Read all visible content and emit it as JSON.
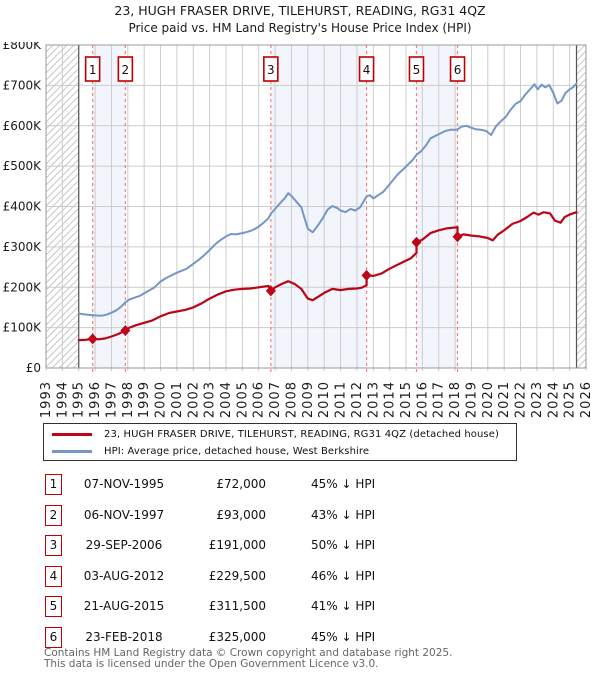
{
  "title": {
    "line1": "23, HUGH FRASER DRIVE, TILEHURST, READING, RG31 4QZ",
    "line2": "Price paid vs. HM Land Registry's House Price Index (HPI)"
  },
  "colors": {
    "price_line": "#bc0618",
    "hpi_line": "#7696c6",
    "grid": "#cccccc",
    "plot_border": "#999999",
    "band": "#f2f5fb",
    "sale_dash": "#f4827c",
    "marker_box_border": "#c00000",
    "hatch": "#c8c8c8",
    "no_data_edge": "#555555",
    "footer_text": "#666666",
    "text": "#1a1a1a"
  },
  "chart_data": {
    "type": "line",
    "title": "23, HUGH FRASER DRIVE, TILEHURST, READING, RG31 4QZ",
    "subtitle": "Price paid vs. HM Land Registry's House Price Index (HPI)",
    "xlabel": "",
    "ylabel": "",
    "x_range": [
      1993,
      2026
    ],
    "y_range": [
      0,
      800000
    ],
    "x_ticks": [
      1993,
      1994,
      1995,
      1996,
      1997,
      1998,
      1999,
      2000,
      2001,
      2002,
      2003,
      2004,
      2005,
      2006,
      2007,
      2008,
      2009,
      2010,
      2011,
      2012,
      2013,
      2014,
      2015,
      2016,
      2017,
      2018,
      2019,
      2020,
      2021,
      2022,
      2023,
      2024,
      2025,
      2026
    ],
    "y_ticks": [
      0,
      100000,
      200000,
      300000,
      400000,
      500000,
      600000,
      700000,
      800000
    ],
    "y_tick_labels": [
      "£0",
      "£100K",
      "£200K",
      "£300K",
      "£400K",
      "£500K",
      "£600K",
      "£700K",
      "£800K"
    ],
    "grid": true,
    "legend_position": "bottom",
    "no_data_hatch": [
      [
        1993,
        1995.0
      ],
      [
        2025.42,
        2026
      ]
    ],
    "ownership_bands": [
      [
        1995.85,
        1997.85
      ],
      [
        2006.74,
        2012.59
      ],
      [
        2015.64,
        2018.15
      ]
    ],
    "sales": [
      {
        "n": "1",
        "x": 1995.85,
        "price": 72000
      },
      {
        "n": "2",
        "x": 1997.85,
        "price": 93000
      },
      {
        "n": "3",
        "x": 2006.74,
        "price": 191000
      },
      {
        "n": "4",
        "x": 2012.59,
        "price": 229500
      },
      {
        "n": "5",
        "x": 2015.64,
        "price": 311500
      },
      {
        "n": "6",
        "x": 2018.15,
        "price": 325000
      }
    ],
    "series": [
      {
        "name": "23, HUGH FRASER DRIVE, TILEHURST, READING, RG31 4QZ (detached house)",
        "color_key": "price_line",
        "points": [
          [
            1995.0,
            69000
          ],
          [
            1995.4,
            69500
          ],
          [
            1995.85,
            72000
          ],
          [
            1996.2,
            71000
          ],
          [
            1996.6,
            73000
          ],
          [
            1997.0,
            78000
          ],
          [
            1997.4,
            84000
          ],
          [
            1997.85,
            93000
          ],
          [
            1998.1,
            100000
          ],
          [
            1998.5,
            106000
          ],
          [
            1999.0,
            112000
          ],
          [
            1999.5,
            118000
          ],
          [
            2000.0,
            128000
          ],
          [
            2000.5,
            136000
          ],
          [
            2001.0,
            140000
          ],
          [
            2001.5,
            144000
          ],
          [
            2002.0,
            150000
          ],
          [
            2002.5,
            160000
          ],
          [
            2003.0,
            172000
          ],
          [
            2003.5,
            182000
          ],
          [
            2004.0,
            190000
          ],
          [
            2004.5,
            194000
          ],
          [
            2005.0,
            196000
          ],
          [
            2005.5,
            197000
          ],
          [
            2006.0,
            200000
          ],
          [
            2006.4,
            202000
          ],
          [
            2006.6,
            203000
          ],
          [
            2006.74,
            191000
          ],
          [
            2007.0,
            200000
          ],
          [
            2007.4,
            208000
          ],
          [
            2007.8,
            215000
          ],
          [
            2008.2,
            208000
          ],
          [
            2008.6,
            196000
          ],
          [
            2009.0,
            172000
          ],
          [
            2009.3,
            168000
          ],
          [
            2009.7,
            178000
          ],
          [
            2010.0,
            186000
          ],
          [
            2010.5,
            196000
          ],
          [
            2011.0,
            193000
          ],
          [
            2011.5,
            196000
          ],
          [
            2012.0,
            197000
          ],
          [
            2012.3,
            199000
          ],
          [
            2012.59,
            205000
          ],
          [
            2012.59,
            229500
          ],
          [
            2013.0,
            228000
          ],
          [
            2013.5,
            234000
          ],
          [
            2014.0,
            246000
          ],
          [
            2014.5,
            256000
          ],
          [
            2015.0,
            266000
          ],
          [
            2015.3,
            272000
          ],
          [
            2015.64,
            285000
          ],
          [
            2015.64,
            311500
          ],
          [
            2016.0,
            318000
          ],
          [
            2016.5,
            334000
          ],
          [
            2017.0,
            341000
          ],
          [
            2017.5,
            346000
          ],
          [
            2018.0,
            348000
          ],
          [
            2018.15,
            349000
          ],
          [
            2018.15,
            325000
          ],
          [
            2018.5,
            331000
          ],
          [
            2019.0,
            328000
          ],
          [
            2019.5,
            326000
          ],
          [
            2020.0,
            322000
          ],
          [
            2020.3,
            316000
          ],
          [
            2020.6,
            330000
          ],
          [
            2021.0,
            341000
          ],
          [
            2021.5,
            357000
          ],
          [
            2022.0,
            364000
          ],
          [
            2022.4,
            374000
          ],
          [
            2022.8,
            385000
          ],
          [
            2023.1,
            380000
          ],
          [
            2023.4,
            386000
          ],
          [
            2023.8,
            383000
          ],
          [
            2024.1,
            365000
          ],
          [
            2024.45,
            360000
          ],
          [
            2024.7,
            374000
          ],
          [
            2025.0,
            380000
          ],
          [
            2025.42,
            386000
          ]
        ]
      },
      {
        "name": "HPI: Average price, detached house, West Berkshire",
        "color_key": "hpi_line",
        "points": [
          [
            1995.0,
            135000
          ],
          [
            1995.3,
            133000
          ],
          [
            1995.6,
            131500
          ],
          [
            1995.85,
            131000
          ],
          [
            1996.1,
            130000
          ],
          [
            1996.4,
            129500
          ],
          [
            1996.7,
            132000
          ],
          [
            1997.0,
            137000
          ],
          [
            1997.3,
            143000
          ],
          [
            1997.6,
            152000
          ],
          [
            1997.85,
            163000
          ],
          [
            1998.1,
            170000
          ],
          [
            1998.4,
            174000
          ],
          [
            1998.7,
            178000
          ],
          [
            1999.0,
            185000
          ],
          [
            1999.3,
            192000
          ],
          [
            1999.6,
            199000
          ],
          [
            2000.0,
            214000
          ],
          [
            2000.3,
            222000
          ],
          [
            2000.6,
            228000
          ],
          [
            2001.0,
            236000
          ],
          [
            2001.3,
            241000
          ],
          [
            2001.6,
            246000
          ],
          [
            2002.0,
            258000
          ],
          [
            2002.3,
            267000
          ],
          [
            2002.6,
            277000
          ],
          [
            2003.0,
            292000
          ],
          [
            2003.3,
            305000
          ],
          [
            2003.6,
            315000
          ],
          [
            2004.0,
            326000
          ],
          [
            2004.3,
            332000
          ],
          [
            2004.6,
            331000
          ],
          [
            2005.0,
            334000
          ],
          [
            2005.3,
            337000
          ],
          [
            2005.6,
            341000
          ],
          [
            2006.0,
            350000
          ],
          [
            2006.3,
            360000
          ],
          [
            2006.6,
            371000
          ],
          [
            2006.74,
            382000
          ],
          [
            2007.0,
            394000
          ],
          [
            2007.3,
            408000
          ],
          [
            2007.6,
            421000
          ],
          [
            2007.8,
            433000
          ],
          [
            2008.0,
            426000
          ],
          [
            2008.3,
            412000
          ],
          [
            2008.6,
            398000
          ],
          [
            2008.8,
            372000
          ],
          [
            2009.0,
            345000
          ],
          [
            2009.3,
            336000
          ],
          [
            2009.6,
            352000
          ],
          [
            2009.9,
            370000
          ],
          [
            2010.2,
            392000
          ],
          [
            2010.5,
            401000
          ],
          [
            2010.8,
            396000
          ],
          [
            2011.0,
            390000
          ],
          [
            2011.3,
            386000
          ],
          [
            2011.6,
            394000
          ],
          [
            2011.9,
            390000
          ],
          [
            2012.2,
            398000
          ],
          [
            2012.59,
            425000
          ],
          [
            2012.8,
            428000
          ],
          [
            2013.0,
            420000
          ],
          [
            2013.3,
            428000
          ],
          [
            2013.6,
            436000
          ],
          [
            2013.9,
            450000
          ],
          [
            2014.2,
            465000
          ],
          [
            2014.5,
            480000
          ],
          [
            2014.8,
            491000
          ],
          [
            2015.1,
            503000
          ],
          [
            2015.4,
            515000
          ],
          [
            2015.64,
            528000
          ],
          [
            2015.9,
            536000
          ],
          [
            2016.2,
            550000
          ],
          [
            2016.5,
            569000
          ],
          [
            2016.8,
            575000
          ],
          [
            2017.1,
            581000
          ],
          [
            2017.4,
            587000
          ],
          [
            2017.7,
            590000
          ],
          [
            2018.0,
            590000
          ],
          [
            2018.15,
            591000
          ],
          [
            2018.4,
            598000
          ],
          [
            2018.7,
            600000
          ],
          [
            2019.0,
            595000
          ],
          [
            2019.3,
            591000
          ],
          [
            2019.6,
            590000
          ],
          [
            2019.9,
            587000
          ],
          [
            2020.2,
            577000
          ],
          [
            2020.5,
            599000
          ],
          [
            2020.8,
            611000
          ],
          [
            2021.1,
            622000
          ],
          [
            2021.4,
            640000
          ],
          [
            2021.7,
            654000
          ],
          [
            2022.0,
            661000
          ],
          [
            2022.3,
            678000
          ],
          [
            2022.6,
            691000
          ],
          [
            2022.85,
            703000
          ],
          [
            2023.05,
            690000
          ],
          [
            2023.3,
            702000
          ],
          [
            2023.5,
            695000
          ],
          [
            2023.75,
            701000
          ],
          [
            2024.0,
            681000
          ],
          [
            2024.25,
            655000
          ],
          [
            2024.5,
            662000
          ],
          [
            2024.75,
            681000
          ],
          [
            2025.0,
            690000
          ],
          [
            2025.2,
            695000
          ],
          [
            2025.42,
            705000
          ]
        ]
      }
    ]
  },
  "table": {
    "rows": [
      {
        "num": "1",
        "date": "07-NOV-1995",
        "price": "£72,000",
        "vs_hpi": "45% ↓ HPI"
      },
      {
        "num": "2",
        "date": "06-NOV-1997",
        "price": "£93,000",
        "vs_hpi": "43% ↓ HPI"
      },
      {
        "num": "3",
        "date": "29-SEP-2006",
        "price": "£191,000",
        "vs_hpi": "50% ↓ HPI"
      },
      {
        "num": "4",
        "date": "03-AUG-2012",
        "price": "£229,500",
        "vs_hpi": "46% ↓ HPI"
      },
      {
        "num": "5",
        "date": "21-AUG-2015",
        "price": "£311,500",
        "vs_hpi": "41% ↓ HPI"
      },
      {
        "num": "6",
        "date": "23-FEB-2018",
        "price": "£325,000",
        "vs_hpi": "45% ↓ HPI"
      }
    ]
  },
  "footer": {
    "line1": "Contains HM Land Registry data © Crown copyright and database right 2025.",
    "line2": "This data is licensed under the Open Government Licence v3.0."
  }
}
